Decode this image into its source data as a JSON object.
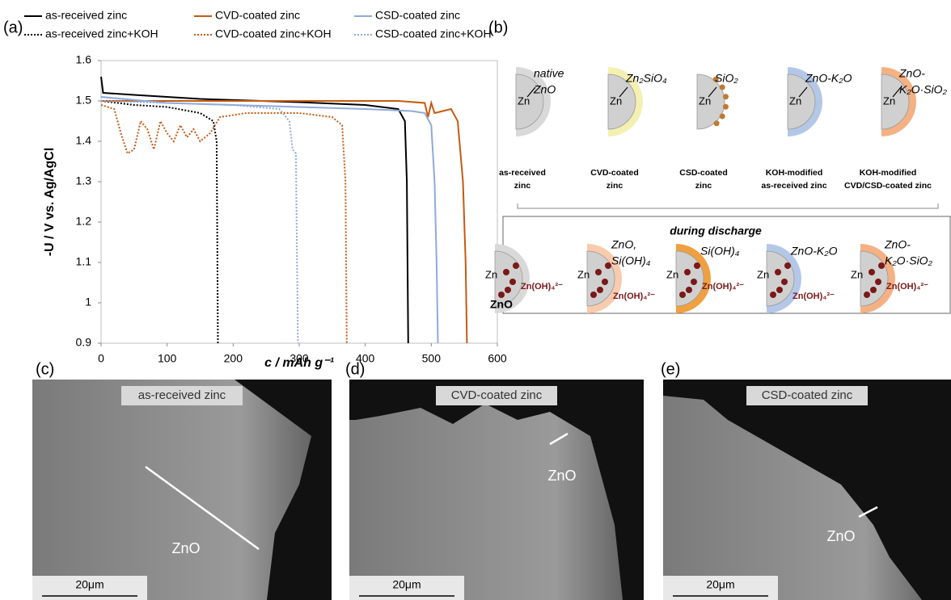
{
  "panel_labels": [
    "(a)",
    "(b)",
    "(c)",
    "(d)",
    "(e)"
  ],
  "chart_data": {
    "type": "line",
    "x_label": "c / mAh g⁻¹",
    "y_label": "-U / V vs. Ag/AgCl",
    "xlim": [
      0,
      600
    ],
    "xticks": [
      0,
      100,
      200,
      300,
      400,
      500,
      600
    ],
    "ylim": [
      0.9,
      1.6
    ],
    "yticks": [
      0.9,
      1,
      1.1,
      1.2,
      1.3,
      1.4,
      1.5,
      1.6
    ],
    "legend": "top",
    "series": [
      {
        "name": "as-received zinc",
        "color": "#000000",
        "style": "solid",
        "x": [
          0,
          3,
          50,
          150,
          300,
          400,
          450,
          460,
          463,
          465
        ],
        "values": [
          1.56,
          1.52,
          1.515,
          1.505,
          1.497,
          1.49,
          1.48,
          1.45,
          1.3,
          0.9
        ]
      },
      {
        "name": "CVD-coated zinc",
        "color": "#c55a11",
        "style": "solid",
        "x": [
          0,
          100,
          300,
          450,
          490,
          495,
          500,
          505,
          530,
          540,
          548,
          552,
          554
        ],
        "values": [
          1.5,
          1.5,
          1.5,
          1.5,
          1.495,
          1.46,
          1.495,
          1.47,
          1.48,
          1.45,
          1.3,
          1.1,
          0.9
        ]
      },
      {
        "name": "CSD-coated zinc",
        "color": "#8eaadb",
        "style": "solid",
        "x": [
          0,
          100,
          200,
          300,
          400,
          470,
          490,
          500,
          505,
          508,
          510
        ],
        "values": [
          1.51,
          1.495,
          1.49,
          1.485,
          1.48,
          1.475,
          1.47,
          1.44,
          1.3,
          1.1,
          0.9
        ]
      },
      {
        "name": "as-received zinc+KOH",
        "color": "#000000",
        "style": "dotted",
        "x": [
          0,
          50,
          100,
          150,
          170,
          175,
          177
        ],
        "values": [
          1.5,
          1.49,
          1.485,
          1.47,
          1.45,
          1.4,
          0.9
        ]
      },
      {
        "name": "CVD-coated zinc+KOH",
        "color": "#c55a11",
        "style": "dotted",
        "x": [
          0,
          20,
          30,
          40,
          50,
          60,
          70,
          80,
          90,
          100,
          110,
          120,
          130,
          140,
          150,
          165,
          180,
          220,
          300,
          350,
          365,
          370,
          372
        ],
        "values": [
          1.49,
          1.48,
          1.42,
          1.37,
          1.38,
          1.45,
          1.43,
          1.38,
          1.45,
          1.42,
          1.4,
          1.44,
          1.41,
          1.43,
          1.4,
          1.42,
          1.46,
          1.47,
          1.47,
          1.46,
          1.44,
          1.3,
          0.9
        ]
      },
      {
        "name": "CSD-coated zinc+KOH",
        "color": "#8eaadb",
        "style": "dotted",
        "x": [
          0,
          100,
          200,
          270,
          285,
          290,
          295,
          298
        ],
        "values": [
          1.5,
          1.495,
          1.49,
          1.48,
          1.45,
          1.38,
          1.37,
          0.9
        ]
      }
    ]
  },
  "diagram": {
    "top": [
      {
        "zn": "Zn",
        "label": [
          "native",
          "ZnO"
        ],
        "caption": [
          "as-received",
          "zinc"
        ]
      },
      {
        "zn": "Zn",
        "label": [
          "Zn₂SiO₄"
        ],
        "caption": [
          "CVD-coated",
          "zinc"
        ]
      },
      {
        "zn": "Zn",
        "label": [
          "SiO₂"
        ],
        "caption": [
          "CSD-coated",
          "zinc"
        ]
      },
      {
        "zn": "Zn",
        "label": [
          "ZnO-K₂O"
        ],
        "caption": [
          "KOH-modified",
          "as-received zinc"
        ]
      },
      {
        "zn": "Zn",
        "label": [
          "ZnO-",
          "K₂O·SiO₂"
        ],
        "caption": [
          "KOH-modified",
          "CVD/CSD-coated zinc"
        ]
      }
    ],
    "discharge_title": "during discharge",
    "bottom": [
      {
        "zn": "Zn",
        "label": [
          "ZnO"
        ],
        "ion": "Zn(OH)₄²⁻"
      },
      {
        "zn": "Zn",
        "label": [
          "ZnO,",
          "Si(OH)₄"
        ],
        "ion": "Zn(OH)₄²⁻"
      },
      {
        "zn": "Zn",
        "label": [
          "Si(OH)₄"
        ],
        "ion": "Zn(OH)₄²⁻"
      },
      {
        "zn": "Zn",
        "label": [
          "ZnO-K₂O"
        ],
        "ion": "Zn(OH)₄²⁻"
      },
      {
        "zn": "Zn",
        "label": [
          "ZnO-",
          "K₂O·SiO₂"
        ],
        "ion": "Zn(OH)₄²⁻"
      }
    ]
  },
  "micrographs": [
    {
      "title": "as-received zinc",
      "label": "ZnO",
      "scale": "20μm"
    },
    {
      "title": "CVD-coated zinc",
      "label": "ZnO",
      "scale": "20μm"
    },
    {
      "title": "CSD-coated zinc",
      "label": "ZnO",
      "scale": "20μm"
    }
  ]
}
